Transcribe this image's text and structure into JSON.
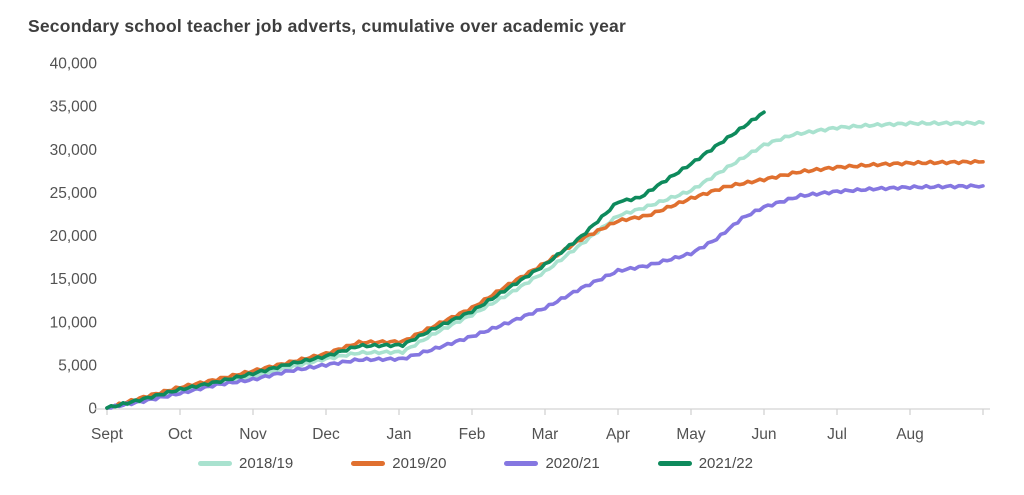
{
  "chart_data": {
    "type": "line",
    "title": "Secondary school teacher job adverts, cumulative over academic year",
    "xlabel": "",
    "ylabel": "",
    "grid": false,
    "legend_position": "bottom",
    "x_axis": {
      "tick_labels": [
        "Sept",
        "Oct",
        "Nov",
        "Dec",
        "Jan",
        "Feb",
        "Mar",
        "Apr",
        "May",
        "Jun",
        "Jul",
        "Aug"
      ],
      "unit": "month of academic year",
      "range_months": [
        0,
        12
      ]
    },
    "y_axis": {
      "min": 0,
      "max": 40000,
      "tick_step": 5000,
      "tick_values": [
        0,
        5000,
        10000,
        15000,
        20000,
        25000,
        30000,
        35000,
        40000
      ],
      "tick_labels": [
        "0",
        "5,000",
        "10,000",
        "15,000",
        "20,000",
        "25,000",
        "30,000",
        "35,000",
        "40,000"
      ]
    },
    "series": [
      {
        "name": "2018/19",
        "color": "#a9e2cf",
        "points": [
          [
            0,
            0
          ],
          [
            0.5,
            950
          ],
          [
            1,
            1900
          ],
          [
            1.5,
            2800
          ],
          [
            2,
            3600
          ],
          [
            2.5,
            4700
          ],
          [
            3,
            5700
          ],
          [
            3.45,
            6400
          ],
          [
            4.05,
            6500
          ],
          [
            4.5,
            8700
          ],
          [
            5,
            10800
          ],
          [
            5.5,
            13200
          ],
          [
            6,
            15800
          ],
          [
            6.5,
            19000
          ],
          [
            7,
            22300
          ],
          [
            7.35,
            23200
          ],
          [
            8,
            25200
          ],
          [
            8.5,
            27900
          ],
          [
            9,
            30500
          ],
          [
            9.4,
            31700
          ],
          [
            10,
            32500
          ],
          [
            10.5,
            32800
          ],
          [
            11,
            33000
          ],
          [
            12,
            33050
          ]
        ]
      },
      {
        "name": "2019/20",
        "color": "#e0702f",
        "points": [
          [
            0,
            0
          ],
          [
            0.5,
            1250
          ],
          [
            1,
            2400
          ],
          [
            1.5,
            3300
          ],
          [
            2,
            4300
          ],
          [
            2.5,
            5300
          ],
          [
            3,
            6300
          ],
          [
            3.45,
            7600
          ],
          [
            4.05,
            7700
          ],
          [
            4.5,
            9600
          ],
          [
            5,
            11600
          ],
          [
            5.5,
            14300
          ],
          [
            6,
            16800
          ],
          [
            6.5,
            19600
          ],
          [
            7,
            21700
          ],
          [
            7.4,
            22300
          ],
          [
            8,
            24300
          ],
          [
            8.5,
            25700
          ],
          [
            9,
            26500
          ],
          [
            9.5,
            27400
          ],
          [
            10,
            27900
          ],
          [
            10.5,
            28200
          ],
          [
            11,
            28400
          ],
          [
            12,
            28550
          ]
        ]
      },
      {
        "name": "2020/21",
        "color": "#8577e1",
        "points": [
          [
            0,
            0
          ],
          [
            0.5,
            800
          ],
          [
            1,
            1700
          ],
          [
            1.5,
            2700
          ],
          [
            2,
            3300
          ],
          [
            2.5,
            4300
          ],
          [
            3,
            5000
          ],
          [
            3.45,
            5600
          ],
          [
            4.05,
            5700
          ],
          [
            4.5,
            6900
          ],
          [
            5,
            8300
          ],
          [
            5.5,
            9900
          ],
          [
            6,
            11600
          ],
          [
            6.5,
            13900
          ],
          [
            7,
            15900
          ],
          [
            7.4,
            16500
          ],
          [
            8,
            17900
          ],
          [
            8.35,
            19600
          ],
          [
            8.7,
            22000
          ],
          [
            9,
            23300
          ],
          [
            9.5,
            24600
          ],
          [
            10,
            25100
          ],
          [
            10.5,
            25400
          ],
          [
            11,
            25600
          ],
          [
            12,
            25750
          ]
        ]
      },
      {
        "name": "2021/22",
        "color": "#0e8a5c",
        "points": [
          [
            0,
            0
          ],
          [
            0.5,
            1050
          ],
          [
            1,
            2150
          ],
          [
            1.5,
            3000
          ],
          [
            2,
            4000
          ],
          [
            2.5,
            5100
          ],
          [
            3,
            6000
          ],
          [
            3.45,
            7200
          ],
          [
            4.05,
            7300
          ],
          [
            4.5,
            9300
          ],
          [
            5,
            11200
          ],
          [
            5.5,
            13900
          ],
          [
            6,
            16600
          ],
          [
            6.5,
            19900
          ],
          [
            7,
            23900
          ],
          [
            7.3,
            24400
          ],
          [
            7.6,
            26100
          ],
          [
            8,
            28300
          ],
          [
            8.5,
            31300
          ],
          [
            9,
            34300
          ]
        ]
      }
    ],
    "style": {
      "title_color": "#3e3e3e",
      "axis_text_color": "#525252",
      "axis_line_color": "#d4d4d4",
      "tick_color": "#cfcfcf",
      "background": "#ffffff",
      "line_width": 3.6
    }
  }
}
